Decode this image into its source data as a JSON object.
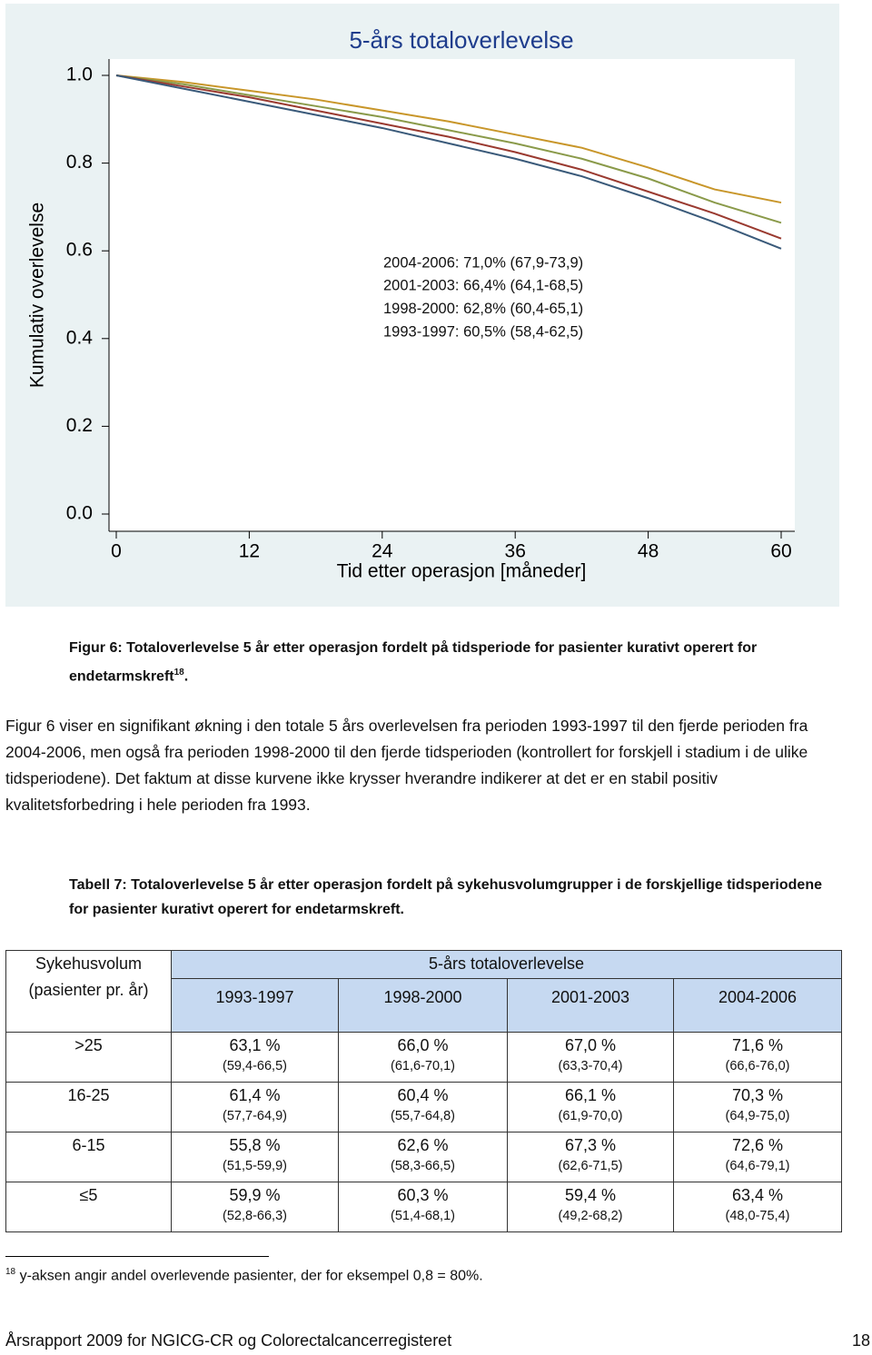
{
  "chart_data": {
    "type": "line",
    "title": "5-års totaloverlevelse",
    "x_label": "Tid etter operasjon [måneder]",
    "y_label": "Kumulativ overlevelse",
    "x": [
      0,
      6,
      12,
      18,
      24,
      30,
      36,
      42,
      48,
      54,
      60
    ],
    "xlim": [
      0,
      60
    ],
    "xticks": [
      0,
      12,
      24,
      36,
      48,
      60
    ],
    "ylim": [
      0,
      1
    ],
    "yticks": [
      {
        "value": 0,
        "label": "0.0"
      },
      0.2,
      0.4,
      0.6,
      0.8,
      {
        "value": 1,
        "label": "1.0"
      }
    ],
    "grid": false,
    "series": [
      {
        "name": "2004-2006: 71,0% (67,9-73,9)",
        "color": "#c8962a",
        "values": [
          1.0,
          0.985,
          0.965,
          0.945,
          0.92,
          0.895,
          0.865,
          0.835,
          0.79,
          0.74,
          0.71
        ]
      },
      {
        "name": "2001-2003: 66,4% (64,1-68,5)",
        "color": "#8a9a4a",
        "values": [
          1.0,
          0.98,
          0.955,
          0.93,
          0.905,
          0.875,
          0.845,
          0.81,
          0.765,
          0.71,
          0.664
        ]
      },
      {
        "name": "1998-2000: 62,8% (60,4-65,1)",
        "color": "#9a3a30",
        "values": [
          1.0,
          0.975,
          0.95,
          0.92,
          0.89,
          0.86,
          0.825,
          0.785,
          0.735,
          0.685,
          0.628
        ]
      },
      {
        "name": "1993-1997: 60,5% (58,4-62,5)",
        "color": "#3a5a7a",
        "values": [
          1.0,
          0.97,
          0.94,
          0.91,
          0.88,
          0.845,
          0.81,
          0.77,
          0.72,
          0.665,
          0.605
        ]
      }
    ]
  },
  "caption": {
    "text": "Figur 6: Totaloverlevelse 5 år etter operasjon fordelt på tidsperiode for pasienter kurativt operert for endetarmskreft",
    "note_ref": "18",
    "end": "."
  },
  "paragraph": "Figur 6 viser en signifikant økning i den totale 5 års overlevelsen fra perioden 1993-1997 til den fjerde perioden fra 2004-2006, men også fra perioden 1998-2000 til den fjerde tidsperioden (kontrollert for forskjell i stadium i de ulike tidsperiodene). Det faktum at disse kurvene ikke krysser hverandre indikerer at det er en stabil positiv kvalitetsforbedring i hele perioden fra 1993.",
  "table_caption": "Tabell 7: Totaloverlevelse 5 år etter operasjon fordelt på sykehusvolumgrupper i de forskjellige tidsperiodene for pasienter kurativt operert for endetarmskreft.",
  "table": {
    "group_label": "Sykehusvolum (pasienter pr. år)",
    "span_label": "5-års totaloverlevelse",
    "columns": [
      "1993-1997",
      "1998-2000",
      "2001-2003",
      "2004-2006"
    ],
    "rows": [
      {
        "group": ">25",
        "cells": [
          {
            "value": "63,1 %",
            "ci": "(59,4-66,5)"
          },
          {
            "value": "66,0 %",
            "ci": "(61,6-70,1)"
          },
          {
            "value": "67,0 %",
            "ci": "(63,3-70,4)"
          },
          {
            "value": "71,6 %",
            "ci": "(66,6-76,0)"
          }
        ]
      },
      {
        "group": "16-25",
        "cells": [
          {
            "value": "61,4 %",
            "ci": "(57,7-64,9)"
          },
          {
            "value": "60,4 %",
            "ci": "(55,7-64,8)"
          },
          {
            "value": "66,1 %",
            "ci": "(61,9-70,0)"
          },
          {
            "value": "70,3 %",
            "ci": "(64,9-75,0)"
          }
        ]
      },
      {
        "group": "6-15",
        "cells": [
          {
            "value": "55,8 %",
            "ci": "(51,5-59,9)"
          },
          {
            "value": "62,6 %",
            "ci": "(58,3-66,5)"
          },
          {
            "value": "67,3 %",
            "ci": "(62,6-71,5)"
          },
          {
            "value": "72,6 %",
            "ci": "(64,6-79,1)"
          }
        ]
      },
      {
        "group": "≤5",
        "cells": [
          {
            "value": "59,9 %",
            "ci": "(52,8-66,3)"
          },
          {
            "value": "60,3 %",
            "ci": "(51,4-68,1)"
          },
          {
            "value": "59,4 %",
            "ci": "(49,2-68,2)"
          },
          {
            "value": "63,4 %",
            "ci": "(48,0-75,4)"
          }
        ]
      }
    ]
  },
  "footnote": {
    "ref": "18",
    "text": "y-aksen angir andel overlevende pasienter, der for eksempel 0,8 = 80%."
  },
  "footer": {
    "left": "Årsrapport 2009 for NGICG-CR og Colorectalcancerregisteret",
    "page": "18"
  }
}
